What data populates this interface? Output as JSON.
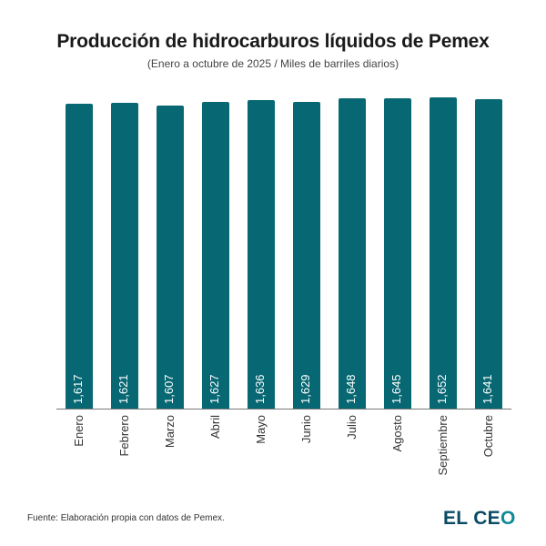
{
  "header": {
    "title": "Producción de hidrocarburos líquidos de Pemex",
    "subtitle": "(Enero a octubre de 2025 / Miles de barriles diarios)"
  },
  "footer": {
    "source": "Fuente: Elaboración propia con datos de Pemex.",
    "logo_main": "EL CE",
    "logo_o": "O"
  },
  "colors": {
    "bar": "#076873",
    "logo": "#0a4a63",
    "logo_accent": "#0e8a97"
  },
  "chart_data": {
    "type": "bar",
    "title": "Producción de hidrocarburos líquidos de Pemex",
    "subtitle": "(Enero a octubre de 2025 / Miles de barriles diarios)",
    "categories": [
      "Enero",
      "Febrero",
      "Marzo",
      "Abril",
      "Mayo",
      "Junio",
      "Julio",
      "Agosto",
      "Septiembre",
      "Octubre"
    ],
    "values": [
      1617,
      1621,
      1607,
      1627,
      1636,
      1629,
      1648,
      1645,
      1652,
      1641
    ],
    "labels": [
      "1,617",
      "1,621",
      "1,607",
      "1,627",
      "1,636",
      "1,629",
      "1,648",
      "1,645",
      "1,652",
      "1,641"
    ],
    "xlabel": "",
    "ylabel": "Miles de barriles diarios",
    "ylim": [
      0,
      1700
    ],
    "grid": false,
    "legend": "none",
    "data_labels": "rotated inside bar bottom, white"
  }
}
